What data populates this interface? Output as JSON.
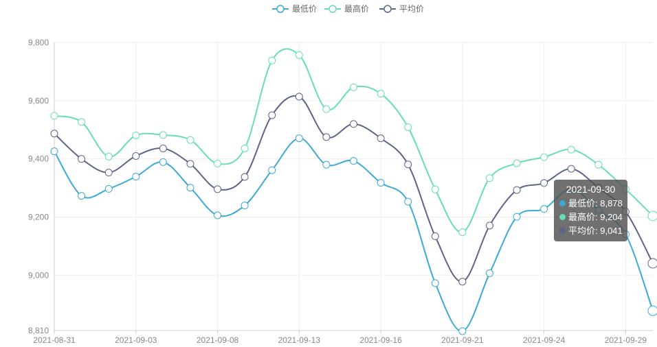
{
  "colors": {
    "low": "#3aa9d8",
    "high": "#66ddb8",
    "avg": "#5b6388"
  },
  "chart_data": {
    "type": "line",
    "smooth": true,
    "ylim": [
      8810,
      9800
    ],
    "yticks": [
      8810,
      9000,
      9200,
      9400,
      9600,
      9800
    ],
    "ytick_labels": [
      "8,810",
      "9,000",
      "9,200",
      "9,400",
      "9,600",
      "9,800"
    ],
    "xtick_labels": [
      "2021-08-31",
      "2021-09-03",
      "2021-09-08",
      "2021-09-13",
      "2021-09-16",
      "2021-09-21",
      "2021-09-24",
      "2021-09-29"
    ],
    "xtick_indices": [
      0,
      3,
      6,
      9,
      12,
      15,
      18,
      21
    ],
    "legend_position": "top-center",
    "grid": true,
    "series": [
      {
        "name": "最低价",
        "color_key": "low",
        "values": [
          9426,
          9273,
          9297,
          9339,
          9389,
          9301,
          9206,
          9240,
          9361,
          9471,
          9380,
          9393,
          9318,
          9253,
          8973,
          8808,
          9007,
          9201,
          9228,
          9297,
          9223,
          9141,
          8878
        ]
      },
      {
        "name": "最高价",
        "color_key": "high",
        "values": [
          9548,
          9527,
          9408,
          9481,
          9482,
          9465,
          9384,
          9436,
          9738,
          9757,
          9571,
          9646,
          9624,
          9509,
          9295,
          9148,
          9334,
          9385,
          9406,
          9432,
          9380,
          9296,
          9204
        ]
      },
      {
        "name": "平均价",
        "color_key": "avg",
        "values": [
          9487,
          9400,
          9353,
          9410,
          9436,
          9383,
          9296,
          9338,
          9550,
          9614,
          9475,
          9520,
          9471,
          9381,
          9134,
          8978,
          9171,
          9293,
          9317,
          9366,
          9301,
          9219,
          9041
        ]
      }
    ]
  },
  "tooltip": {
    "title": "2021-09-30",
    "rows": [
      {
        "label": "最低价: 8,878",
        "color_key": "low"
      },
      {
        "label": "最高价: 9,204",
        "color_key": "high"
      },
      {
        "label": "平均价: 9,041",
        "color_key": "avg"
      }
    ]
  }
}
